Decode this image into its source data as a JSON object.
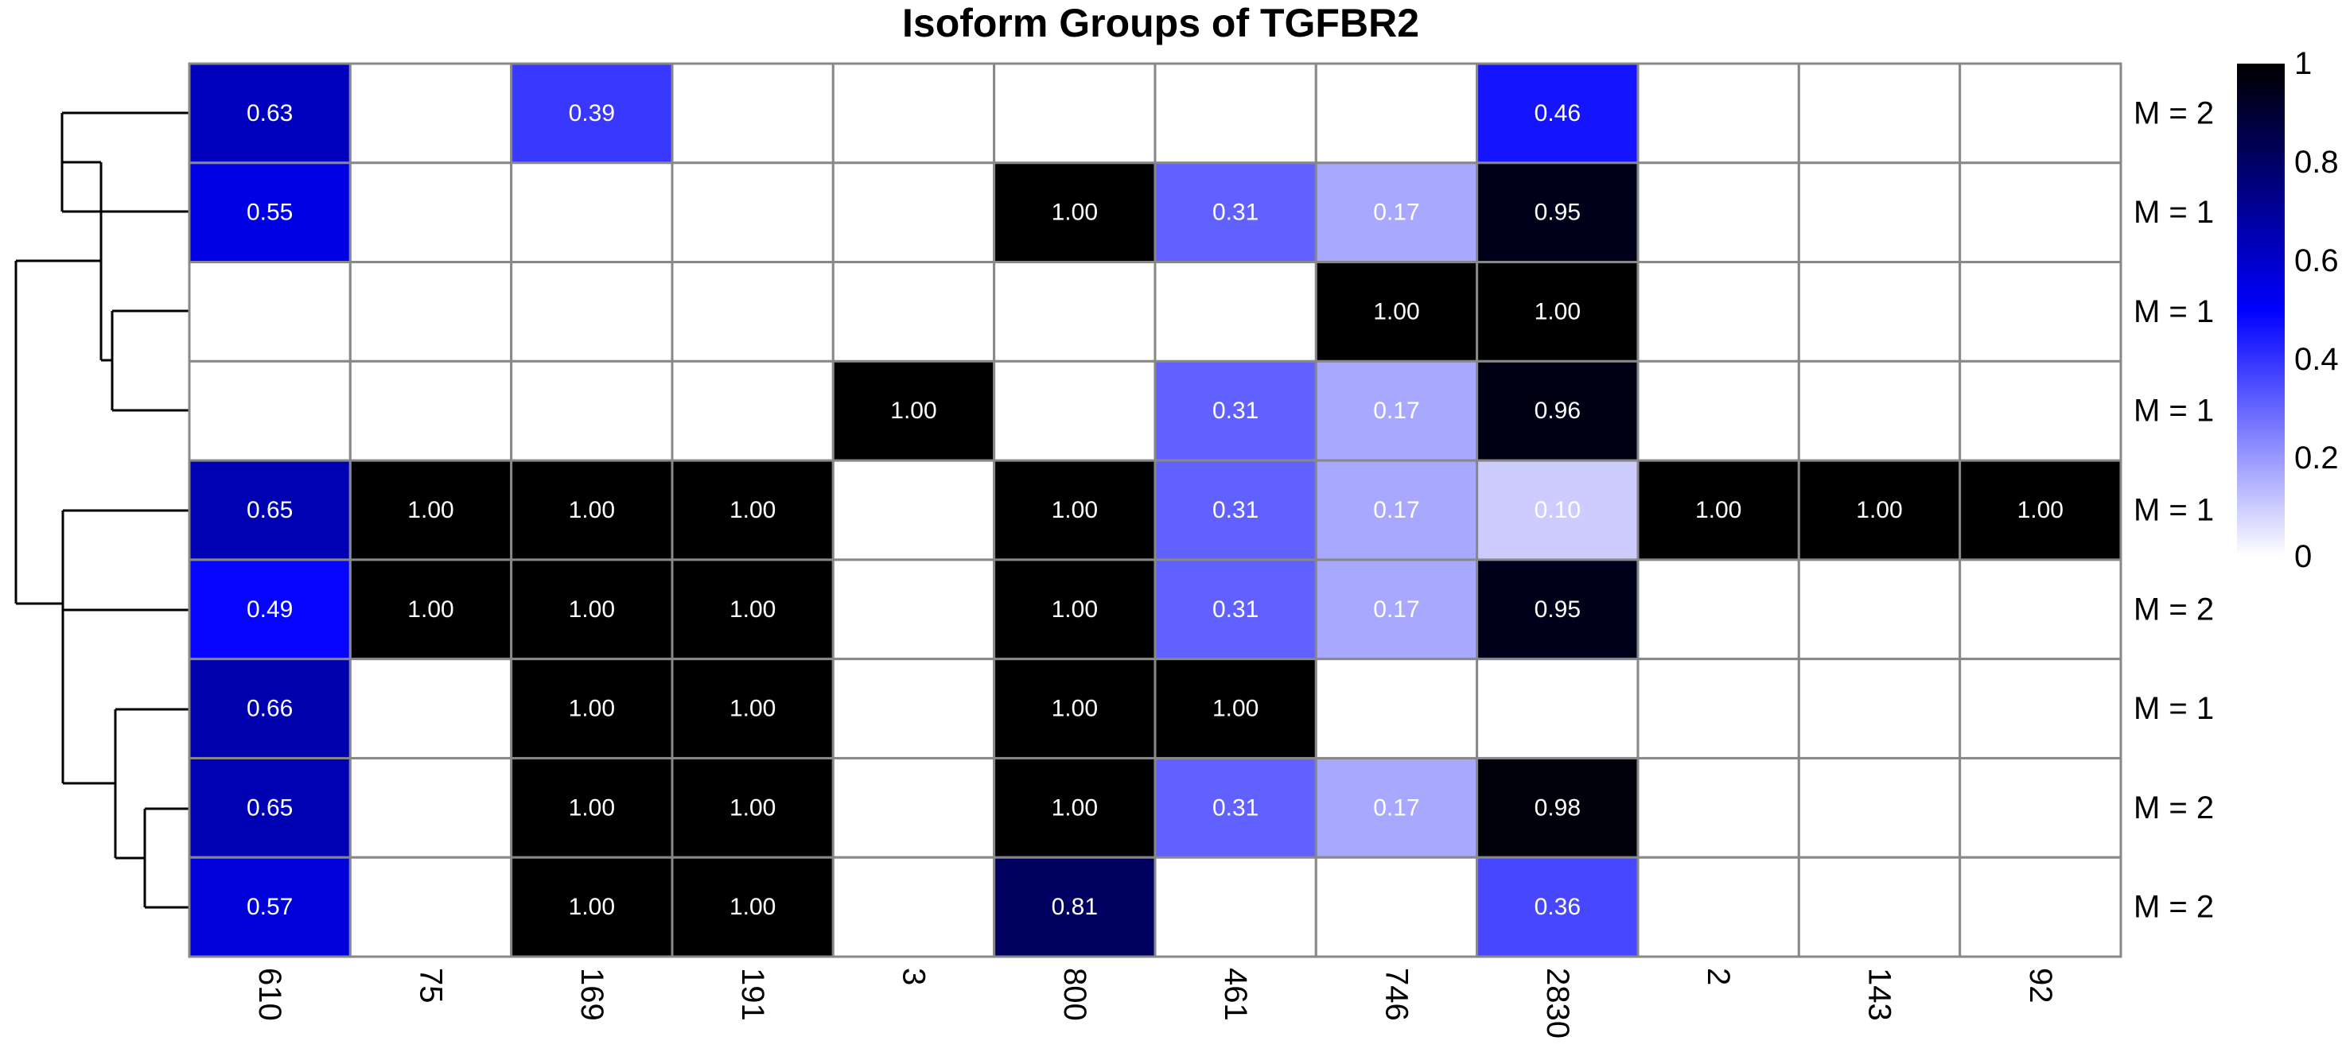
{
  "chart_data": {
    "type": "heatmap",
    "title": "Isoform Groups of TGFBR2",
    "columns": [
      "610",
      "75",
      "169",
      "191",
      "3",
      "800",
      "461",
      "746",
      "2830",
      "2",
      "143",
      "92"
    ],
    "rows": [
      "M = 2",
      "M = 1",
      "M = 1",
      "M = 1",
      "M = 1",
      "M = 2",
      "M = 1",
      "M = 2",
      "M = 2"
    ],
    "values": [
      [
        0.63,
        null,
        0.39,
        null,
        null,
        null,
        null,
        null,
        0.46,
        null,
        null,
        null
      ],
      [
        0.55,
        null,
        null,
        null,
        null,
        1.0,
        0.31,
        0.17,
        0.95,
        null,
        null,
        null
      ],
      [
        null,
        null,
        null,
        null,
        null,
        null,
        null,
        1.0,
        1.0,
        null,
        null,
        null
      ],
      [
        null,
        null,
        null,
        null,
        1.0,
        null,
        0.31,
        0.17,
        0.96,
        null,
        null,
        null
      ],
      [
        0.65,
        1.0,
        1.0,
        1.0,
        null,
        1.0,
        0.31,
        0.17,
        0.1,
        1.0,
        1.0,
        1.0
      ],
      [
        0.49,
        1.0,
        1.0,
        1.0,
        null,
        1.0,
        0.31,
        0.17,
        0.95,
        null,
        null,
        null
      ],
      [
        0.66,
        null,
        1.0,
        1.0,
        null,
        1.0,
        1.0,
        null,
        null,
        null,
        null,
        null
      ],
      [
        0.65,
        null,
        1.0,
        1.0,
        null,
        1.0,
        0.31,
        0.17,
        0.98,
        null,
        null,
        null
      ],
      [
        0.57,
        null,
        1.0,
        1.0,
        null,
        0.81,
        null,
        null,
        0.36,
        null,
        null,
        null
      ]
    ],
    "cell_labels": [
      [
        "0.63",
        "",
        "0.39",
        "",
        "",
        "",
        "",
        "",
        "0.46",
        "",
        "",
        ""
      ],
      [
        "0.55",
        "",
        "",
        "",
        "",
        "1.00",
        "0.31",
        "0.17",
        "0.95",
        "",
        "",
        ""
      ],
      [
        "",
        "",
        "",
        "",
        "",
        "",
        "",
        "1.00",
        "1.00",
        "",
        "",
        ""
      ],
      [
        "",
        "",
        "",
        "",
        "1.00",
        "",
        "0.31",
        "0.17",
        "0.96",
        "",
        "",
        ""
      ],
      [
        "0.65",
        "1.00",
        "1.00",
        "1.00",
        "",
        "1.00",
        "0.31",
        "0.17",
        "0.10",
        "1.00",
        "1.00",
        "1.00"
      ],
      [
        "0.49",
        "1.00",
        "1.00",
        "1.00",
        "",
        "1.00",
        "0.31",
        "0.17",
        "0.95",
        "",
        "",
        ""
      ],
      [
        "0.66",
        "",
        "1.00",
        "1.00",
        "",
        "1.00",
        "1.00",
        "",
        "",
        "",
        "",
        ""
      ],
      [
        "0.65",
        "",
        "1.00",
        "1.00",
        "",
        "1.00",
        "0.31",
        "0.17",
        "0.98",
        "",
        "",
        ""
      ],
      [
        "0.57",
        "",
        "1.00",
        "1.00",
        "",
        "0.81",
        "",
        "",
        "0.36",
        "",
        "",
        ""
      ]
    ],
    "color_scale": {
      "range": [
        0,
        1
      ],
      "stops": [
        {
          "value": 0.0,
          "color": "#ffffff"
        },
        {
          "value": 0.5,
          "color": "#0000ff"
        },
        {
          "value": 1.0,
          "color": "#000000"
        }
      ],
      "ticks": [
        "0",
        "0.2",
        "0.4",
        "0.6",
        "0.8",
        "1"
      ]
    },
    "grid_color": "#888888",
    "row_dendrogram": true,
    "legend_placement": "right"
  }
}
